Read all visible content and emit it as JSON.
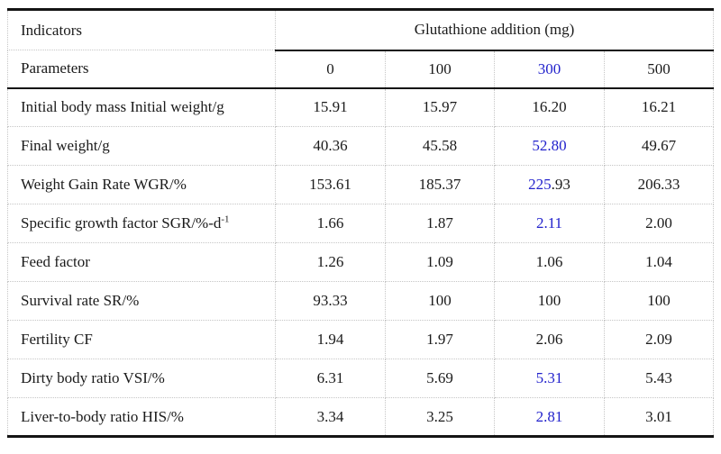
{
  "colors": {
    "highlight_blue": "#2222CC",
    "text": "#1a1a1a",
    "thick_rule": "#141414",
    "dotted_grid": "#c6c6c6",
    "background": "#ffffff"
  },
  "chart_data": {
    "type": "table",
    "group_header": "Glutathione addition (mg)",
    "corner": {
      "row1": "Indicators",
      "row2": "Parameters"
    },
    "dose_columns": [
      {
        "segments": [
          {
            "t": "0"
          }
        ]
      },
      {
        "segments": [
          {
            "t": "100"
          }
        ]
      },
      {
        "segments": [
          {
            "t": "300",
            "blue": true
          }
        ]
      },
      {
        "segments": [
          {
            "t": "500"
          }
        ]
      }
    ],
    "rows": [
      {
        "label": {
          "segments": [
            {
              "t": "Initial body mass Initial weight/g"
            }
          ]
        },
        "values": [
          {
            "segments": [
              {
                "t": "15.91"
              }
            ]
          },
          {
            "segments": [
              {
                "t": "15.97"
              }
            ]
          },
          {
            "segments": [
              {
                "t": "16.20"
              }
            ]
          },
          {
            "segments": [
              {
                "t": "16.21"
              }
            ]
          }
        ]
      },
      {
        "label": {
          "segments": [
            {
              "t": "Final weight/g"
            }
          ]
        },
        "values": [
          {
            "segments": [
              {
                "t": "40.36"
              }
            ]
          },
          {
            "segments": [
              {
                "t": "45.58"
              }
            ]
          },
          {
            "segments": [
              {
                "t": "52.80",
                "blue": true
              }
            ]
          },
          {
            "segments": [
              {
                "t": "49.67"
              }
            ]
          }
        ]
      },
      {
        "label": {
          "segments": [
            {
              "t": "Weight Gain Rate WGR/%"
            }
          ]
        },
        "values": [
          {
            "segments": [
              {
                "t": "153.61"
              }
            ]
          },
          {
            "segments": [
              {
                "t": "185.37"
              }
            ]
          },
          {
            "segments": [
              {
                "t": "225",
                "blue": true
              },
              {
                "t": ".93"
              }
            ]
          },
          {
            "segments": [
              {
                "t": "206.33"
              }
            ]
          }
        ]
      },
      {
        "label": {
          "segments": [
            {
              "t": "Specific growth factor SGR/%-d"
            },
            {
              "t": "-1",
              "sup": true
            }
          ]
        },
        "values": [
          {
            "segments": [
              {
                "t": "1.66"
              }
            ]
          },
          {
            "segments": [
              {
                "t": "1.87"
              }
            ]
          },
          {
            "segments": [
              {
                "t": "2.11",
                "blue": true
              }
            ]
          },
          {
            "segments": [
              {
                "t": "2.00"
              }
            ]
          }
        ]
      },
      {
        "label": {
          "segments": [
            {
              "t": "Feed factor"
            }
          ]
        },
        "values": [
          {
            "segments": [
              {
                "t": "1.26"
              }
            ]
          },
          {
            "segments": [
              {
                "t": "1.09"
              }
            ]
          },
          {
            "segments": [
              {
                "t": "1.06"
              }
            ]
          },
          {
            "segments": [
              {
                "t": "1.04"
              }
            ]
          }
        ]
      },
      {
        "label": {
          "segments": [
            {
              "t": "Survival rate SR/%"
            }
          ]
        },
        "values": [
          {
            "segments": [
              {
                "t": "93.33"
              }
            ]
          },
          {
            "segments": [
              {
                "t": "100"
              }
            ]
          },
          {
            "segments": [
              {
                "t": "100"
              }
            ]
          },
          {
            "segments": [
              {
                "t": "100"
              }
            ]
          }
        ]
      },
      {
        "label": {
          "segments": [
            {
              "t": "Fertility CF"
            }
          ]
        },
        "values": [
          {
            "segments": [
              {
                "t": "1.94"
              }
            ]
          },
          {
            "segments": [
              {
                "t": "1.97"
              }
            ]
          },
          {
            "segments": [
              {
                "t": "2.06"
              }
            ]
          },
          {
            "segments": [
              {
                "t": "2.09"
              }
            ]
          }
        ]
      },
      {
        "label": {
          "segments": [
            {
              "t": "Dirty body ratio VSI/%"
            }
          ]
        },
        "values": [
          {
            "segments": [
              {
                "t": "6.31"
              }
            ]
          },
          {
            "segments": [
              {
                "t": "5.69"
              }
            ]
          },
          {
            "segments": [
              {
                "t": "5.31",
                "blue": true
              }
            ]
          },
          {
            "segments": [
              {
                "t": "5.43"
              }
            ]
          }
        ]
      },
      {
        "label": {
          "segments": [
            {
              "t": "Liver-to-body ratio HIS/%"
            }
          ]
        },
        "values": [
          {
            "segments": [
              {
                "t": "3.34"
              }
            ]
          },
          {
            "segments": [
              {
                "t": "3.25"
              }
            ]
          },
          {
            "segments": [
              {
                "t": "2.81",
                "blue": true
              }
            ]
          },
          {
            "segments": [
              {
                "t": "3.01"
              }
            ]
          }
        ]
      }
    ]
  }
}
